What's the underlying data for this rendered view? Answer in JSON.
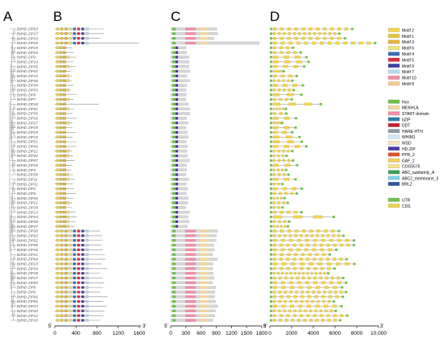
{
  "panels": {
    "a_label": "A",
    "b_label": "B",
    "c_label": "C",
    "d_label": "D"
  },
  "genes": [
    "BdHD-ZIP63",
    "BdHD-ZIP17",
    "BdHD-ZIP33",
    "BdHD-ZIP49",
    "BdHD-ZIP20",
    "BdHD-ZIP25",
    "BdHD-ZIP3",
    "BdHD-ZIP14",
    "BdHD-ZIP35",
    "BdHD-ZIP42",
    "BdHD-ZIP15",
    "BdHD-ZIP46",
    "BdHD-ZIP34",
    "BdHD-ZIP53",
    "BdHD-ZIP9",
    "BdHD-ZIP7",
    "BdHD-ZIP18",
    "BdHD-ZIP61",
    "BdHD-ZIP55",
    "BdHD-ZIP16",
    "BdHD-ZIP27",
    "BdHD-ZIP28",
    "BdHD-ZIP29",
    "BdHD-ZIP19",
    "BdHD-ZIP51",
    "BdHD-ZIP43",
    "BdHD-ZIP21",
    "BdHD-ZIP32",
    "BdHD-ZIP57",
    "BdHD-ZIP26",
    "BdHD-ZIP4",
    "BdHD-ZIP58",
    "BdHD-ZIP11",
    "BdHD-ZIP31",
    "BdHD-ZIP2",
    "BdHD-ZIP5",
    "BdHD-ZIP45",
    "BdHD-ZIP22",
    "BdHD-ZIP39",
    "BdHD-ZIP13",
    "BdHD-ZIP44",
    "BdHD-ZIP48",
    "BdHD-ZIP47",
    "BdHD-ZIP30",
    "BdHD-ZIP62",
    "BdHD-ZIP52",
    "BdHD-ZIP50",
    "BdHD-ZIP36",
    "BdHD-ZIP41",
    "BdHD-ZIP64",
    "BdHD-ZIP23",
    "BdHD-ZIP54",
    "BdHD-ZIP38",
    "BdHD-ZIP37",
    "BdHD-ZIP60",
    "BdHD-ZIP8",
    "BdHD-ZIP6",
    "BdHD-ZIP66",
    "BdHD-ZIP56",
    "BdHD-ZIP24",
    "BdHD-ZIP40",
    "BdHD-ZIP12",
    "BdHD-ZIP10"
  ],
  "axes": {
    "b_ticks": [
      "0",
      "400",
      "800",
      "1200",
      "1600"
    ],
    "c_ticks": [
      "0",
      "300",
      "600",
      "900",
      "1200",
      "1500",
      "1800"
    ],
    "d_ticks": [
      "0",
      "2000",
      "4000",
      "6000",
      "8000",
      "10,000"
    ],
    "five_prime": "5'",
    "three_prime": "3'"
  },
  "motif_legend": [
    {
      "label": "Motif 2",
      "color": "#f2d54a"
    },
    {
      "label": "Motif 1",
      "color": "#e8c43c"
    },
    {
      "label": "Motif 3",
      "color": "#e3b43a"
    },
    {
      "label": "Motif 6",
      "color": "#f1e57a"
    },
    {
      "label": "Motif 4",
      "color": "#3f6bb5"
    },
    {
      "label": "Motif 5",
      "color": "#e0283b"
    },
    {
      "label": "Motif 9",
      "color": "#3c3ea5"
    },
    {
      "label": "Motif 7",
      "color": "#b3dff0"
    },
    {
      "label": "Motif 10",
      "color": "#f28fa0"
    },
    {
      "label": "Motif 8",
      "color": "#f3c98a"
    }
  ],
  "domain_legend": [
    {
      "label": "Hox",
      "color": "#6fbf4a"
    },
    {
      "label": "MEKHLA",
      "color": "#f2d8a0"
    },
    {
      "label": "START domain",
      "color": "#f18ca5"
    },
    {
      "label": "bZIP",
      "color": "#2f7ba8"
    },
    {
      "label": "DDT",
      "color": "#c6202f"
    },
    {
      "label": "HARE-HTH",
      "color": "#8e9aa6"
    },
    {
      "label": "WHIM1",
      "color": "#cfe8f4"
    },
    {
      "label": "WSD",
      "color": "#f5e7c1"
    },
    {
      "label": "HD-ZIP",
      "color": "#4a3aa8"
    },
    {
      "label": "PPR_2",
      "color": "#e34e2a"
    },
    {
      "label": "GAF_2",
      "color": "#f2ce5a"
    },
    {
      "label": "COG5576",
      "color": "#f6e88a"
    },
    {
      "label": "ABC_subfamily_A",
      "color": "#3a9e54"
    },
    {
      "label": "ABC2_membrane_3",
      "color": "#7dd4e8"
    },
    {
      "label": "BRLZ",
      "color": "#2d55a0"
    }
  ],
  "structure_legend": [
    {
      "label": "UTR",
      "color": "#6fbf4a"
    },
    {
      "label": "CDS",
      "color": "#f2d54a"
    }
  ]
}
